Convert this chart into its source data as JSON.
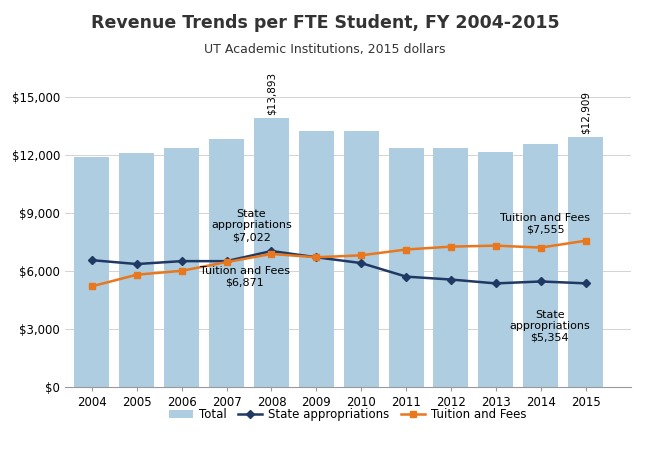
{
  "title": "Revenue Trends per FTE Student, FY 2004-2015",
  "subtitle": "UT Academic Institutions, 2015 dollars",
  "years": [
    2004,
    2005,
    2006,
    2007,
    2008,
    2009,
    2010,
    2011,
    2012,
    2013,
    2014,
    2015
  ],
  "total": [
    11900,
    12100,
    12350,
    12800,
    13893,
    13200,
    13200,
    12350,
    12350,
    12150,
    12550,
    12909
  ],
  "state_appropriations": [
    6550,
    6350,
    6500,
    6500,
    7022,
    6700,
    6400,
    5700,
    5550,
    5350,
    5450,
    5354
  ],
  "tuition_fees": [
    5200,
    5800,
    6000,
    6450,
    6871,
    6700,
    6800,
    7100,
    7250,
    7300,
    7200,
    7555
  ],
  "bar_color": "#aecde0",
  "state_color": "#1f3864",
  "tuition_color": "#e8771d",
  "ylim": [
    0,
    16500
  ],
  "yticks": [
    0,
    3000,
    6000,
    9000,
    12000,
    15000
  ],
  "ytick_labels": [
    "$0",
    "$3,000",
    "$6,000",
    "$9,000",
    "$12,000",
    "$15,000"
  ],
  "bar_label_2008": "$13,893",
  "bar_label_2015": "$12,909",
  "ann_state_2008_label": "State\nappropriations\n$7,022",
  "ann_tuition_2008_label": "Tuition and Fees\n$6,871",
  "ann_tuition_2015_label": "Tuition and Fees\n$7,555",
  "ann_state_2015_label": "State\nappropriations\n$5,354",
  "legend_labels": [
    "Total",
    "State appropriations",
    "Tuition and Fees"
  ]
}
